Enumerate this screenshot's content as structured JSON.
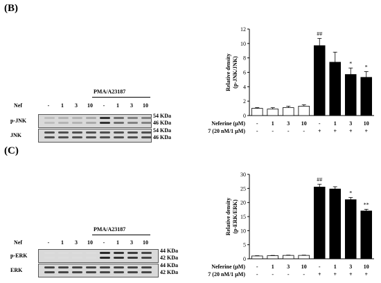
{
  "panel_b": {
    "label": "(B)",
    "blot": {
      "treatment_label": "PMA/A23187",
      "nef_label": "Nef",
      "lanes": [
        "-",
        "1",
        "3",
        "10",
        "-",
        "1",
        "3",
        "10"
      ],
      "rows": [
        {
          "name": "p-JNK",
          "sizes": [
            "54 KDa",
            "46 KDa"
          ],
          "intensities": [
            0.15,
            0.2,
            0.2,
            0.25,
            0.85,
            0.55,
            0.45,
            0.45
          ]
        },
        {
          "name": "JNK",
          "sizes": [
            "54 KDa",
            "46 KDa"
          ],
          "intensities": [
            0.7,
            0.7,
            0.7,
            0.7,
            0.7,
            0.7,
            0.7,
            0.7
          ]
        }
      ]
    },
    "legend_rows": [
      {
        "label": "Neferine (µM)",
        "values": [
          "-",
          "1",
          "3",
          "10",
          "-",
          "1",
          "3",
          "10"
        ]
      },
      {
        "label": "PMA/A23187 (20 nM/1 µM)",
        "values": [
          "-",
          "-",
          "-",
          "-",
          "+",
          "+",
          "+",
          "+"
        ]
      }
    ]
  },
  "panel_c": {
    "label": "(C)",
    "blot": {
      "treatment_label": "PMA/A23187",
      "nef_label": "Nef",
      "lanes": [
        "-",
        "1",
        "3",
        "10",
        "-",
        "1",
        "3",
        "10"
      ],
      "rows": [
        {
          "name": "p-ERK",
          "sizes": [
            "44 KDa",
            "42 KDa"
          ],
          "intensities": [
            0.0,
            0.0,
            0.0,
            0.0,
            0.9,
            0.85,
            0.8,
            0.75
          ]
        },
        {
          "name": "ERK",
          "sizes": [
            "44 KDa",
            "42 KDa"
          ],
          "intensities": [
            0.75,
            0.75,
            0.75,
            0.75,
            0.75,
            0.75,
            0.75,
            0.75
          ]
        }
      ]
    },
    "legend_rows": [
      {
        "label": "Neferine (µM)",
        "values": [
          "-",
          "1",
          "3",
          "10",
          "-",
          "1",
          "3",
          "10"
        ]
      },
      {
        "label": "PMA/A23187 (20 nM/1 µM)",
        "values": [
          "-",
          "-",
          "-",
          "-",
          "+",
          "+",
          "+",
          "+"
        ]
      }
    ]
  },
  "chart_data": [
    {
      "type": "bar",
      "ylabel": "Relative density (p-JNK/JNK)",
      "ylim": [
        0,
        12
      ],
      "yticks": [
        0,
        2,
        4,
        6,
        8,
        10,
        12
      ],
      "values": [
        1.0,
        0.9,
        1.1,
        1.3,
        9.7,
        7.4,
        5.7,
        5.3
      ],
      "errors": [
        0.1,
        0.2,
        0.2,
        0.2,
        1.0,
        1.4,
        0.9,
        0.8
      ],
      "fills": [
        "white",
        "white",
        "white",
        "white",
        "black",
        "black",
        "black",
        "black"
      ],
      "annotations": [
        "",
        "",
        "",
        "",
        "##",
        "",
        "*",
        "*"
      ]
    },
    {
      "type": "bar",
      "ylabel": "Relative density (p-ERK/ERK)",
      "ylim": [
        0,
        30
      ],
      "yticks": [
        0,
        5,
        10,
        15,
        20,
        25,
        30
      ],
      "values": [
        1.0,
        1.1,
        1.2,
        1.2,
        25.5,
        24.8,
        21.0,
        17.0
      ],
      "errors": [
        0.1,
        0.1,
        0.1,
        0.1,
        1.0,
        0.8,
        0.8,
        0.6
      ],
      "fills": [
        "white",
        "white",
        "white",
        "white",
        "black",
        "black",
        "black",
        "black"
      ],
      "annotations": [
        "",
        "",
        "",
        "",
        "##",
        "",
        "*",
        "**"
      ]
    }
  ]
}
